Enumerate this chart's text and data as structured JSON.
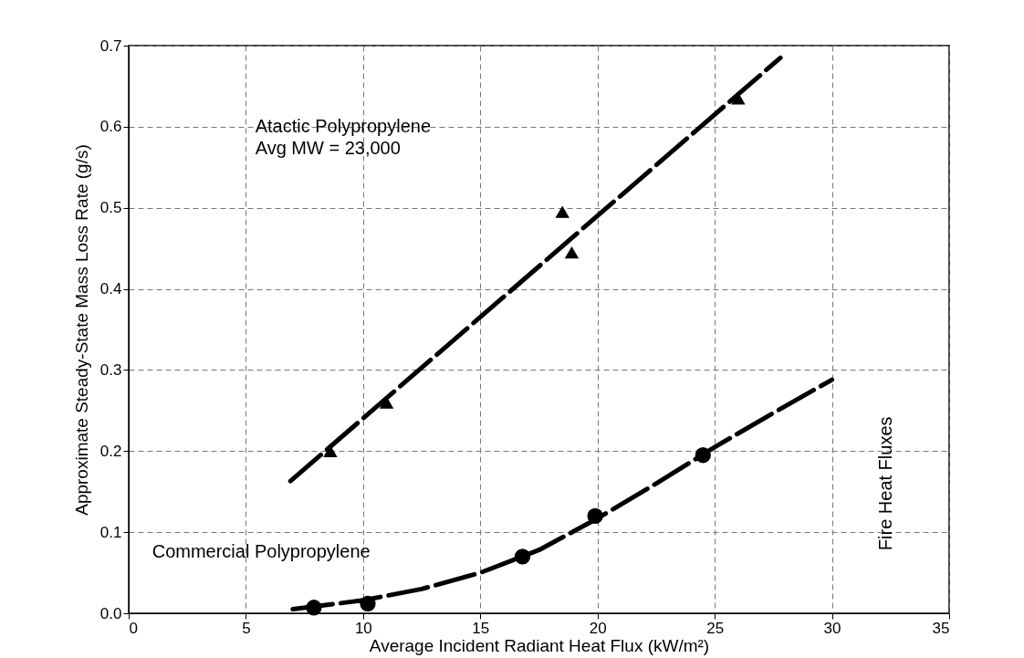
{
  "chart_data": {
    "type": "scatter",
    "xlabel": "Average Incident Radiant Heat Flux (kW/m²)",
    "ylabel": "Approximate Steady-State Mass Loss Rate (g/s)",
    "series": [
      {
        "type": "line",
        "color": "#000000",
        "line_style": "dashed",
        "marker": "none",
        "x": [
          6.9,
          27.8
        ],
        "values": [
          0.163,
          0.685
        ]
      },
      {
        "type": "line",
        "color": "#000000",
        "line_style": "dashed",
        "marker": "none",
        "x": [
          7,
          10,
          12.5,
          15,
          17.5,
          20,
          22.5,
          25,
          27.5,
          30
        ],
        "values": [
          0.005,
          0.016,
          0.03,
          0.05,
          0.078,
          0.117,
          0.16,
          0.205,
          0.247,
          0.288
        ]
      },
      {
        "type": "scatter",
        "color": "#000000",
        "marker": "triangle",
        "x": [
          8.6,
          11.0,
          18.5,
          18.9,
          26.0
        ],
        "values": [
          0.2,
          0.26,
          0.495,
          0.445,
          0.635
        ]
      },
      {
        "type": "scatter",
        "color": "#000000",
        "marker": "circle",
        "x": [
          7.9,
          10.2,
          16.8,
          19.9,
          24.5
        ],
        "values": [
          0.007,
          0.012,
          0.07,
          0.12,
          0.195
        ]
      }
    ],
    "xlim": [
      0,
      35
    ],
    "xticks": [
      0,
      5,
      10,
      15,
      20,
      25,
      30,
      35
    ],
    "ylim": [
      0,
      0.7
    ],
    "yticks": [
      {
        "value": 0,
        "label": "0.0"
      },
      0.1,
      0.2,
      0.3,
      0.4,
      0.5,
      0.6,
      0.7
    ],
    "grid": true,
    "annotations": [
      "Atactic Polypropylene\nAvg MW = 23,000",
      "Commercial Polypropylene",
      "Fire Heat Fluxes"
    ]
  }
}
